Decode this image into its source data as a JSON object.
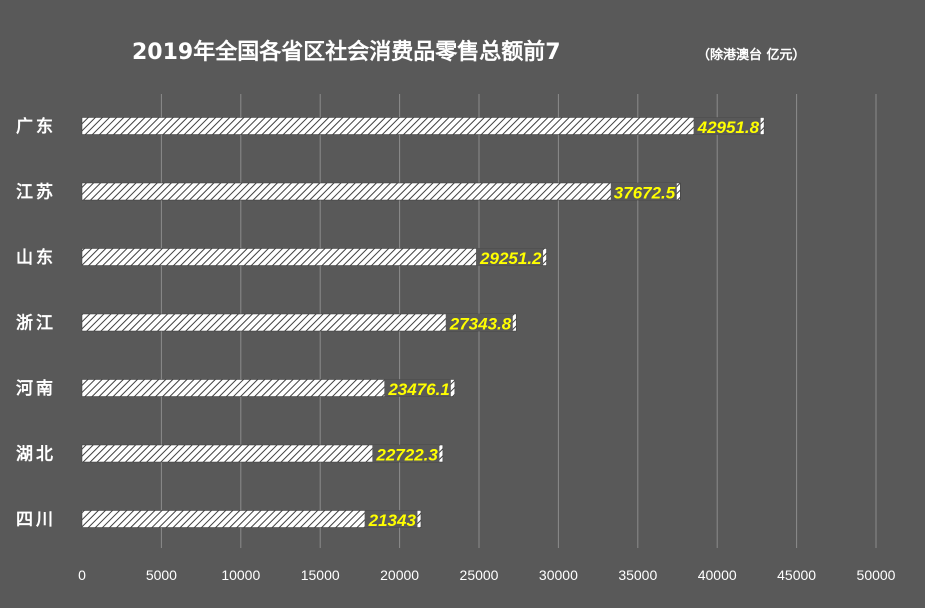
{
  "colors": {
    "background": "#595959",
    "grid": "#8c8c8c",
    "bar_fill": "#ffffff",
    "bar_hatch": "#404040",
    "value_label": "#ffff00",
    "text": "#ffffff"
  },
  "chart_data": {
    "type": "bar",
    "orientation": "horizontal",
    "title": "2019年全国各省区社会消费品零售总额前7",
    "subtitle": "（除港澳台 亿元）",
    "categories": [
      "广东",
      "江苏",
      "山东",
      "浙江",
      "河南",
      "湖北",
      "四川"
    ],
    "values": [
      42951.8,
      37672.5,
      29251.2,
      27343.8,
      23476.1,
      22722.3,
      21343
    ],
    "value_labels": [
      "42951.8",
      "37672.5",
      "29251.2",
      "27343.8",
      "23476.1",
      "22722.3",
      "21343"
    ],
    "xlim": [
      0,
      50000
    ],
    "xticks": [
      0,
      5000,
      10000,
      15000,
      20000,
      25000,
      30000,
      35000,
      40000,
      45000,
      50000
    ],
    "xlabel": "",
    "ylabel": "",
    "grid": true,
    "legend": "none"
  }
}
